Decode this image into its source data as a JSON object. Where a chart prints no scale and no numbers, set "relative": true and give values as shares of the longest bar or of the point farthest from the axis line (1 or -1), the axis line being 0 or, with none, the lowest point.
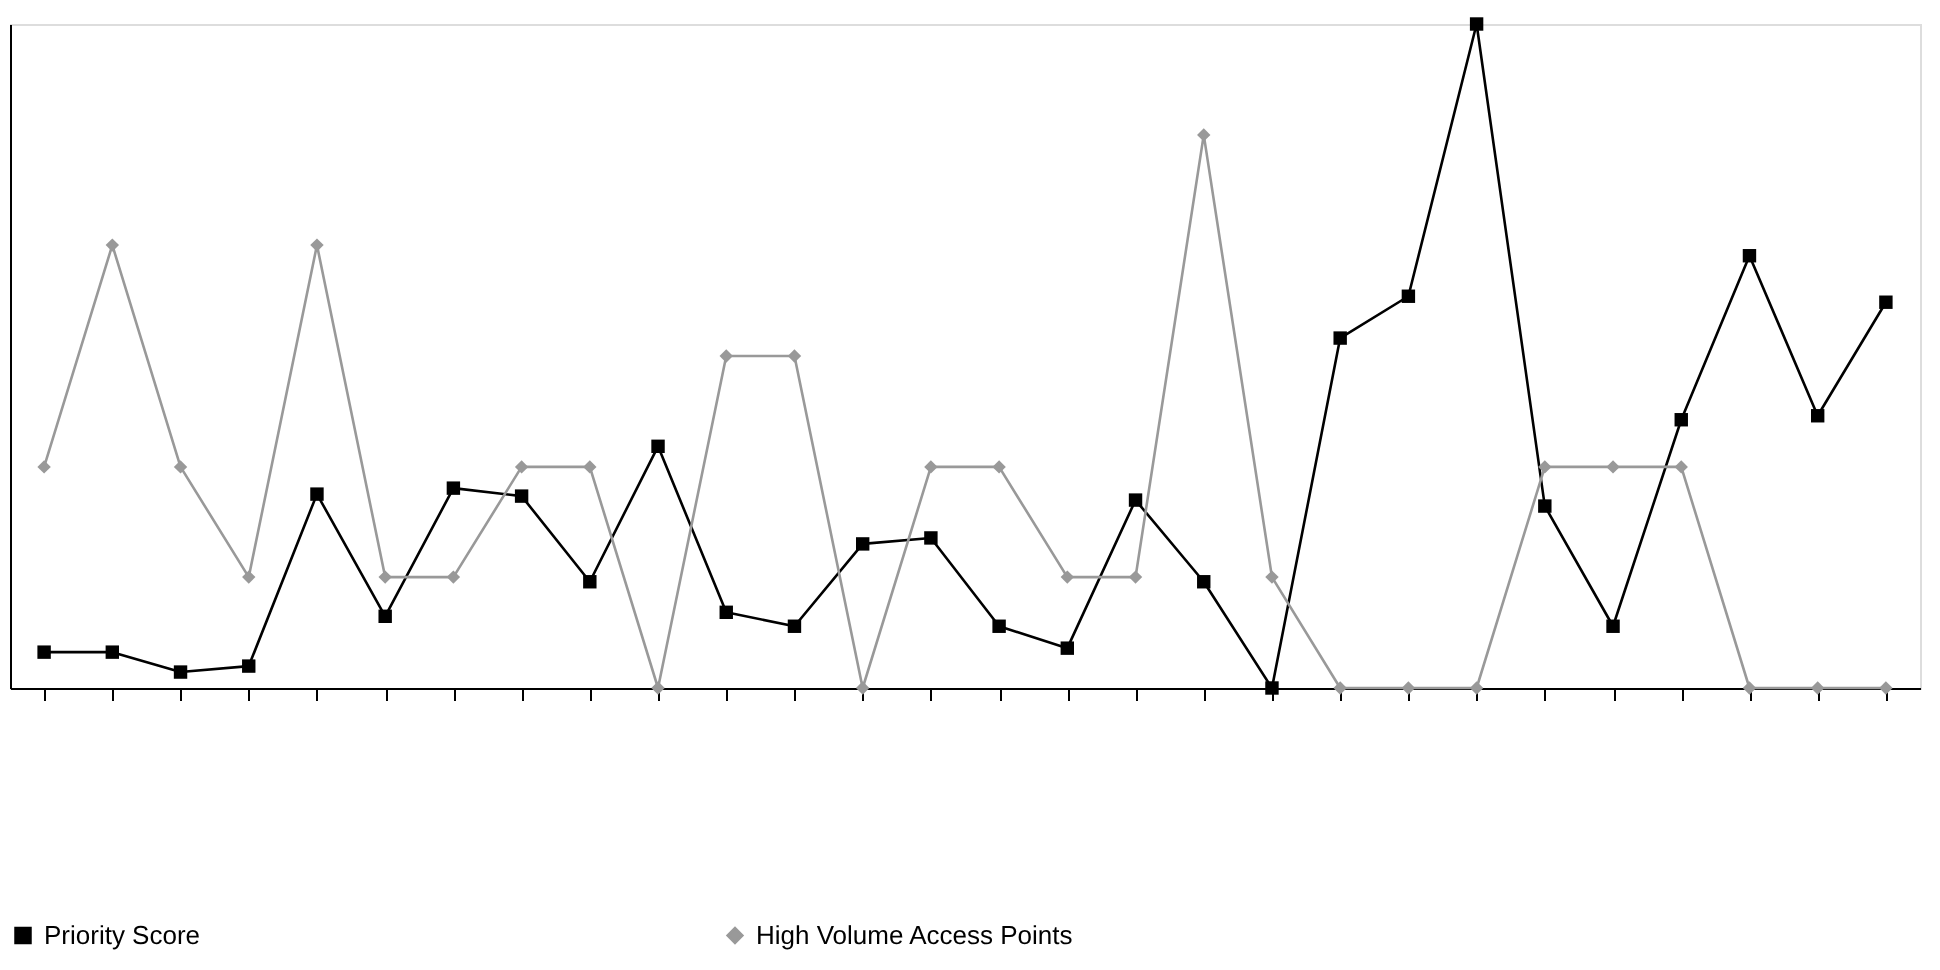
{
  "chart_data": {
    "type": "line",
    "relative": true,
    "tick_labels": false,
    "grid": false,
    "legend": "bottom",
    "categories": [
      null,
      null,
      null,
      null,
      null,
      null,
      null,
      null,
      null,
      null,
      null,
      null,
      null,
      null,
      null,
      null,
      null,
      null,
      null,
      null,
      null,
      null,
      null,
      null,
      null,
      null,
      null,
      null
    ],
    "series": [
      {
        "name": "Priority Score",
        "color": "#000000",
        "marker": "square",
        "values": [
          0.054,
          0.054,
          0.024,
          0.033,
          0.292,
          0.108,
          0.301,
          0.289,
          0.16,
          0.364,
          0.114,
          0.093,
          0.217,
          0.226,
          0.093,
          0.06,
          0.283,
          0.16,
          0,
          0.527,
          0.59,
          1,
          0.274,
          0.093,
          0.404,
          0.651,
          0.41,
          0.581
        ]
      },
      {
        "name": "High Volume Access Points",
        "color": "#999999",
        "marker": "diamond",
        "values": [
          0.333,
          0.667,
          0.333,
          0.167,
          0.667,
          0.167,
          0.167,
          0.333,
          0.333,
          0,
          0.5,
          0.5,
          0,
          0.333,
          0.333,
          0.167,
          0.167,
          0.833,
          0.167,
          0,
          0,
          0,
          0.333,
          0.333,
          0.333,
          0,
          0,
          0
        ]
      }
    ]
  }
}
